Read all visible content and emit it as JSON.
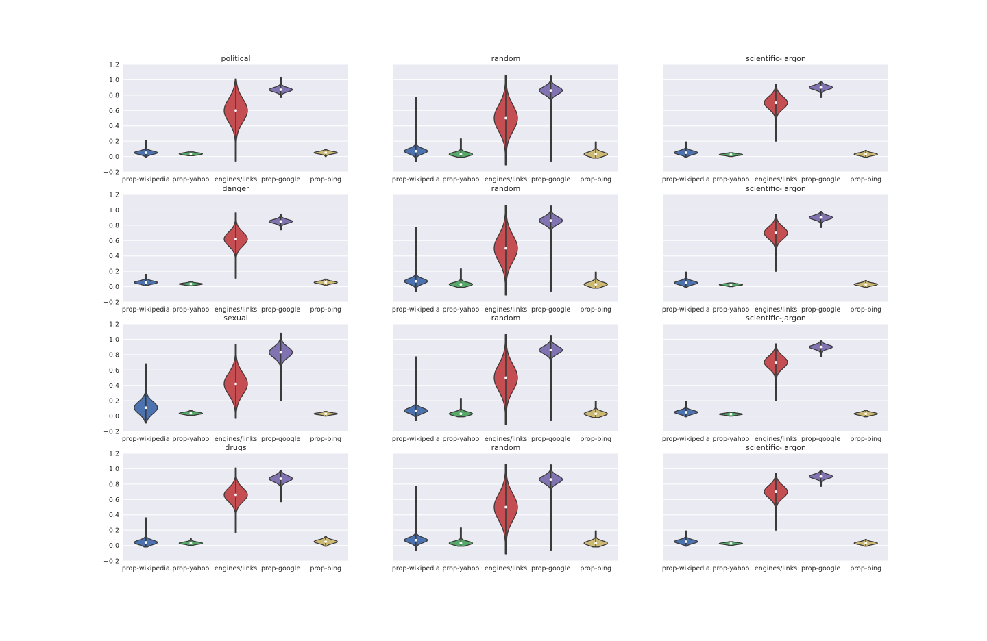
{
  "colors": {
    "background": "#ffffff",
    "panel": "#eaeaf2",
    "grid": "#ffffff",
    "outline": "#3a3a3a",
    "text": "#262626",
    "palette": [
      "#4c72b0",
      "#55a868",
      "#c44e52",
      "#8172b2",
      "#ccb974"
    ]
  },
  "chart_data": {
    "type": "violin",
    "categories": [
      "prop-wikipedia",
      "prop-yahoo",
      "engines/links",
      "prop-google",
      "prop-bing"
    ],
    "y_ticks": [
      "−0.2",
      "0.0",
      "0.2",
      "0.4",
      "0.6",
      "0.8",
      "1.0",
      "1.2"
    ],
    "ylim": [
      -0.2,
      1.2
    ],
    "grid": true,
    "violin_fields": [
      "min",
      "max",
      "median",
      "center_of_mass",
      "spread",
      "tail_factor"
    ],
    "panels": [
      {
        "title": "political",
        "violins": [
          [
            -0.01,
            0.21,
            0.05,
            0.05,
            0.022,
            0.6
          ],
          [
            0.01,
            0.06,
            0.035,
            0.035,
            0.014,
            1.0
          ],
          [
            -0.06,
            1.01,
            0.6,
            0.6,
            0.15,
            0.6
          ],
          [
            0.77,
            1.03,
            0.87,
            0.87,
            0.028,
            0.6
          ],
          [
            0.0,
            0.09,
            0.05,
            0.05,
            0.016,
            0.8
          ]
        ]
      },
      {
        "title": "random",
        "violins": [
          [
            -0.06,
            0.77,
            0.07,
            0.07,
            0.035,
            0.15
          ],
          [
            -0.01,
            0.23,
            0.03,
            0.03,
            0.025,
            0.25
          ],
          [
            -0.11,
            1.06,
            0.5,
            0.5,
            0.17,
            0.5
          ],
          [
            -0.06,
            1.05,
            0.86,
            0.86,
            0.05,
            0.18
          ],
          [
            -0.02,
            0.19,
            0.03,
            0.03,
            0.03,
            0.3
          ]
        ]
      },
      {
        "title": "scientific-jargon",
        "violins": [
          [
            -0.01,
            0.19,
            0.05,
            0.05,
            0.025,
            0.5
          ],
          [
            0.0,
            0.05,
            0.025,
            0.025,
            0.012,
            1.0
          ],
          [
            0.2,
            0.94,
            0.7,
            0.7,
            0.08,
            0.5
          ],
          [
            0.77,
            0.98,
            0.9,
            0.9,
            0.028,
            0.6
          ],
          [
            -0.01,
            0.08,
            0.03,
            0.03,
            0.018,
            0.8
          ]
        ]
      },
      {
        "title": "danger",
        "violins": [
          [
            0.01,
            0.16,
            0.055,
            0.055,
            0.02,
            0.6
          ],
          [
            0.01,
            0.07,
            0.035,
            0.035,
            0.012,
            1.0
          ],
          [
            0.11,
            0.96,
            0.62,
            0.62,
            0.09,
            0.45
          ],
          [
            0.74,
            0.94,
            0.85,
            0.85,
            0.025,
            0.7
          ],
          [
            0.01,
            0.1,
            0.055,
            0.055,
            0.016,
            0.8
          ]
        ]
      },
      {
        "title": "random",
        "violins": [
          [
            -0.06,
            0.77,
            0.07,
            0.07,
            0.035,
            0.15
          ],
          [
            -0.01,
            0.23,
            0.03,
            0.03,
            0.025,
            0.25
          ],
          [
            -0.11,
            1.06,
            0.5,
            0.5,
            0.17,
            0.5
          ],
          [
            -0.06,
            1.05,
            0.86,
            0.86,
            0.05,
            0.18
          ],
          [
            -0.02,
            0.19,
            0.03,
            0.03,
            0.03,
            0.3
          ]
        ]
      },
      {
        "title": "scientific-jargon",
        "violins": [
          [
            -0.01,
            0.19,
            0.05,
            0.05,
            0.025,
            0.5
          ],
          [
            0.0,
            0.05,
            0.025,
            0.025,
            0.012,
            1.0
          ],
          [
            0.2,
            0.94,
            0.7,
            0.7,
            0.08,
            0.5
          ],
          [
            0.77,
            0.98,
            0.9,
            0.9,
            0.028,
            0.6
          ],
          [
            -0.01,
            0.08,
            0.03,
            0.03,
            0.018,
            0.8
          ]
        ]
      },
      {
        "title": "sexual",
        "violins": [
          [
            -0.09,
            0.68,
            0.11,
            0.11,
            0.08,
            0.3
          ],
          [
            0.01,
            0.07,
            0.035,
            0.035,
            0.015,
            1.0
          ],
          [
            -0.03,
            0.93,
            0.42,
            0.42,
            0.14,
            0.5
          ],
          [
            0.2,
            1.08,
            0.83,
            0.83,
            0.07,
            0.35
          ],
          [
            0.0,
            0.06,
            0.03,
            0.03,
            0.013,
            1.0
          ]
        ]
      },
      {
        "title": "random",
        "violins": [
          [
            -0.06,
            0.77,
            0.07,
            0.07,
            0.035,
            0.15
          ],
          [
            -0.01,
            0.23,
            0.03,
            0.03,
            0.025,
            0.25
          ],
          [
            -0.11,
            1.06,
            0.5,
            0.5,
            0.17,
            0.5
          ],
          [
            -0.06,
            1.05,
            0.86,
            0.86,
            0.05,
            0.18
          ],
          [
            -0.02,
            0.19,
            0.03,
            0.03,
            0.03,
            0.3
          ]
        ]
      },
      {
        "title": "scientific-jargon",
        "violins": [
          [
            -0.01,
            0.19,
            0.05,
            0.05,
            0.025,
            0.5
          ],
          [
            0.0,
            0.05,
            0.025,
            0.025,
            0.012,
            1.0
          ],
          [
            0.2,
            0.94,
            0.7,
            0.7,
            0.08,
            0.5
          ],
          [
            0.77,
            0.98,
            0.9,
            0.9,
            0.028,
            0.6
          ],
          [
            -0.01,
            0.08,
            0.03,
            0.03,
            0.018,
            0.8
          ]
        ]
      },
      {
        "title": "drugs",
        "violins": [
          [
            -0.02,
            0.36,
            0.04,
            0.04,
            0.03,
            0.4
          ],
          [
            0.0,
            0.09,
            0.03,
            0.03,
            0.015,
            0.8
          ],
          [
            0.17,
            1.01,
            0.66,
            0.66,
            0.09,
            0.45
          ],
          [
            0.57,
            0.98,
            0.87,
            0.87,
            0.04,
            0.45
          ],
          [
            -0.01,
            0.12,
            0.05,
            0.05,
            0.025,
            0.8
          ]
        ]
      },
      {
        "title": "random",
        "violins": [
          [
            -0.06,
            0.77,
            0.07,
            0.07,
            0.035,
            0.15
          ],
          [
            -0.01,
            0.23,
            0.03,
            0.03,
            0.025,
            0.25
          ],
          [
            -0.11,
            1.06,
            0.5,
            0.5,
            0.17,
            0.5
          ],
          [
            -0.06,
            1.05,
            0.86,
            0.86,
            0.05,
            0.18
          ],
          [
            -0.02,
            0.19,
            0.03,
            0.03,
            0.03,
            0.3
          ]
        ]
      },
      {
        "title": "scientific-jargon",
        "violins": [
          [
            -0.01,
            0.19,
            0.05,
            0.05,
            0.025,
            0.5
          ],
          [
            0.0,
            0.05,
            0.025,
            0.025,
            0.012,
            1.0
          ],
          [
            0.2,
            0.94,
            0.7,
            0.7,
            0.08,
            0.5
          ],
          [
            0.77,
            0.98,
            0.9,
            0.9,
            0.028,
            0.6
          ],
          [
            -0.01,
            0.08,
            0.03,
            0.03,
            0.018,
            0.8
          ]
        ]
      }
    ]
  }
}
